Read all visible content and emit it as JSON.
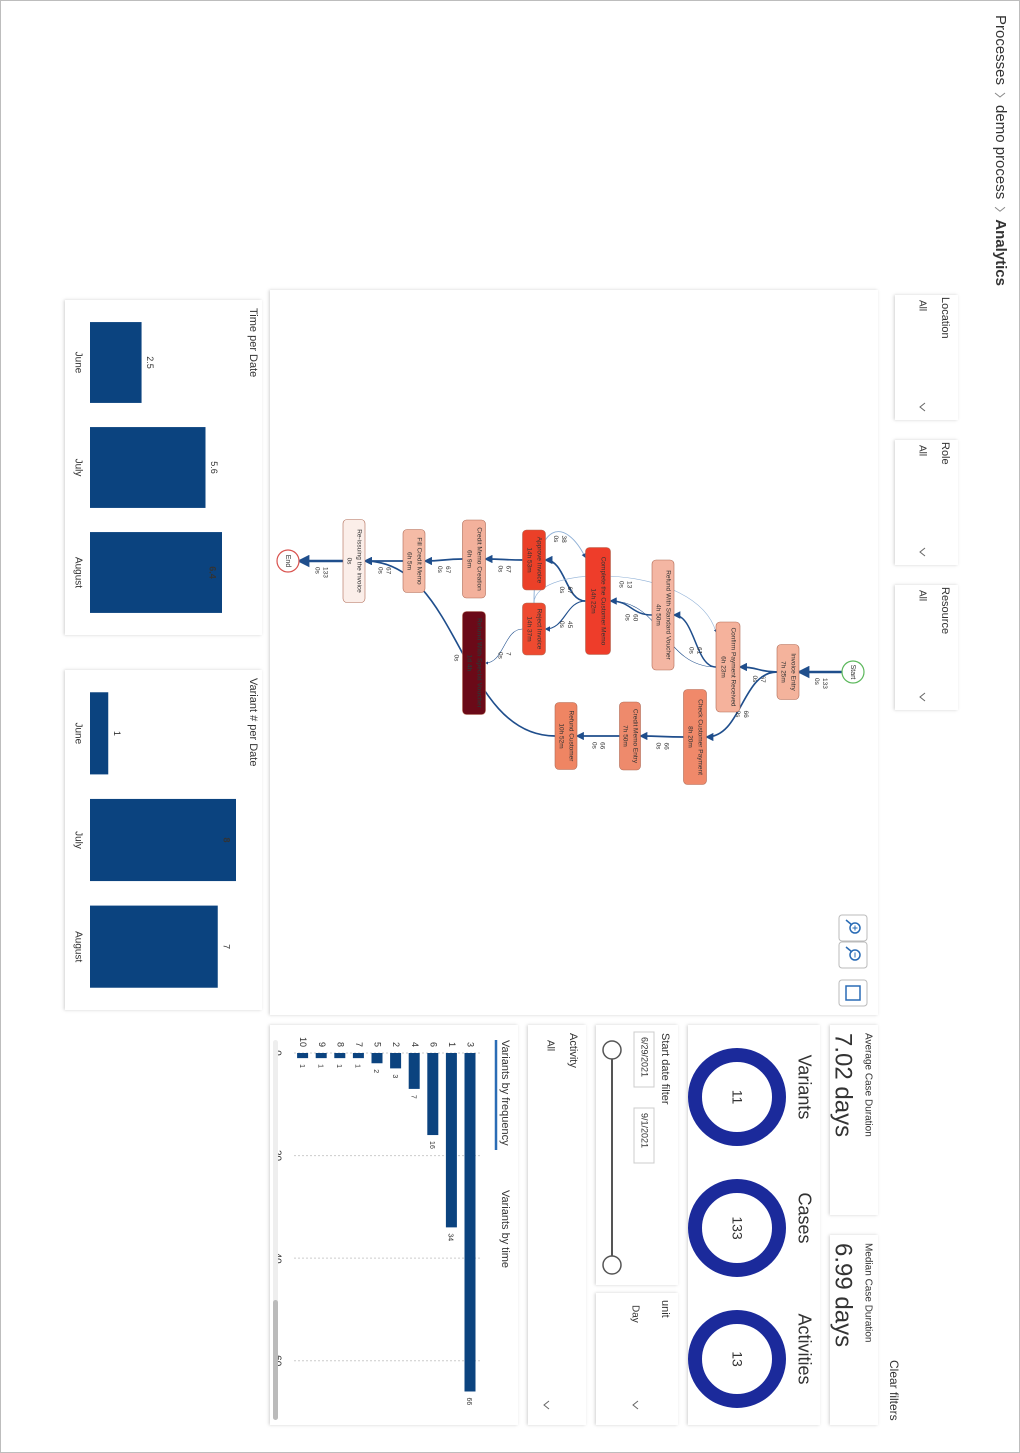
{
  "breadcrumb": [
    "Processes",
    "demo process",
    "Analytics"
  ],
  "filters": [
    {
      "label": "Location",
      "value": "All"
    },
    {
      "label": "Role",
      "value": "All"
    },
    {
      "label": "Resource",
      "value": "All"
    }
  ],
  "process_map": {
    "nodes": [
      {
        "label": "Start",
        "color": "#ffffff"
      },
      {
        "label": "Invoice Entry",
        "duration": "7h 25m",
        "color": "#f4b39c"
      },
      {
        "label": "Confirm Payment Received",
        "duration": "6h 23m",
        "color": "#f5b29c"
      },
      {
        "label": "Check Customer Payment",
        "duration": "8h 20m",
        "color": "#f0896a"
      },
      {
        "label": "Refund With Standard Voucher",
        "duration": "4h 50m",
        "color": "#f4b6a3"
      },
      {
        "label": "Credit Memo Entry",
        "duration": "7h 50m",
        "color": "#ee8a6c"
      },
      {
        "label": "Complete the Customer Memo",
        "duration": "14h 22m",
        "color": "#ee3d2a"
      },
      {
        "label": "Refund Customer",
        "duration": "10h 52m",
        "color": "#ef8563"
      },
      {
        "label": "Approve Invoice",
        "duration": "14h 53m",
        "color": "#eb4028"
      },
      {
        "label": "Reject Invoice",
        "duration": "14h 37m",
        "color": "#ee4a30"
      },
      {
        "label": "Refund With Special Voucher",
        "duration": "1d 4h",
        "color": "#6b0a18"
      },
      {
        "label": "Credit Memo Creation",
        "duration": "6h 9m",
        "color": "#f3b19c"
      },
      {
        "label": "Fill Credit Memo",
        "duration": "6h 5m",
        "color": "#f5bba6"
      },
      {
        "label": "Re-issuing the invoice",
        "duration": "0s",
        "color": "#fbeee9"
      },
      {
        "label": "End",
        "color": "#ffffff"
      }
    ],
    "edges": [
      {
        "from": 0,
        "to": 1,
        "count": 133,
        "time": "0s"
      },
      {
        "from": 1,
        "to": 2,
        "count": 67,
        "time": "0s"
      },
      {
        "from": 1,
        "to": 3,
        "count": 66,
        "time": "0s"
      },
      {
        "from": 2,
        "to": 4,
        "count": 61,
        "time": "0s"
      },
      {
        "from": 2,
        "to": 6,
        "count": 6,
        "time": "0s"
      },
      {
        "from": 4,
        "to": 6,
        "count": 60,
        "time": "0s"
      },
      {
        "from": 3,
        "to": 5,
        "count": 66,
        "time": "0s"
      },
      {
        "from": 5,
        "to": 7,
        "count": 66,
        "time": "0s"
      },
      {
        "from": 6,
        "to": 8,
        "count": 67,
        "time": "0s"
      },
      {
        "from": 6,
        "to": 9,
        "count": 45,
        "time": "0s"
      },
      {
        "from": 9,
        "to": 10,
        "count": 7,
        "time": "0s"
      },
      {
        "from": 9,
        "to": 6,
        "count": 38,
        "time": "0s"
      },
      {
        "from": 9,
        "to": 2,
        "count": 13,
        "time": "0s"
      },
      {
        "from": 8,
        "to": 11,
        "count": 67,
        "time": "0s"
      },
      {
        "from": 11,
        "to": 12,
        "count": 67,
        "time": "0s"
      },
      {
        "from": 12,
        "to": 13,
        "count": 67,
        "time": "0s"
      },
      {
        "from": 7,
        "to": 13,
        "count": 66,
        "time": "0s"
      },
      {
        "from": 13,
        "to": 14,
        "count": 133,
        "time": "0s"
      }
    ]
  },
  "chart_data": [
    {
      "type": "bar",
      "title": "Time per Date",
      "categories": [
        "June",
        "July",
        "August"
      ],
      "values": [
        2.5,
        5.6,
        6.4
      ],
      "color": "#0b437f"
    },
    {
      "type": "bar",
      "title": "Variant # per Date",
      "categories": [
        "June",
        "July",
        "August"
      ],
      "values": [
        1,
        8,
        7
      ],
      "color": "#0b437f"
    },
    {
      "type": "hbar",
      "tabs": [
        "Variants by frequency",
        "Variants by time"
      ],
      "categories": [
        "3",
        "1",
        "6",
        "4",
        "2",
        "5",
        "7",
        "8",
        "9",
        "10"
      ],
      "values": [
        66,
        34,
        16,
        7,
        3,
        2,
        1,
        1,
        1,
        1
      ],
      "color": "#0b437f",
      "xlim": [
        0,
        70
      ],
      "xticks": [
        0,
        20,
        40,
        60
      ],
      "grid": true
    }
  ],
  "kpis": [
    {
      "label": "Average Case Duration",
      "value": "7.02 days"
    },
    {
      "label": "Median Case Duration",
      "value": "6.99 days"
    }
  ],
  "clear_filters": "Clear filters",
  "stats": {
    "color": "#1b2a9b",
    "items": [
      {
        "label": "Variants",
        "value": 11
      },
      {
        "label": "Cases",
        "value": 133
      },
      {
        "label": "Activities",
        "value": 13
      }
    ]
  },
  "start_date_filter": {
    "label": "Start date filter",
    "from": "6/29/2021",
    "to": "9/1/2021"
  },
  "unit": {
    "label": "unit",
    "value": "Day"
  },
  "activity": {
    "label": "Activity",
    "value": "All"
  }
}
